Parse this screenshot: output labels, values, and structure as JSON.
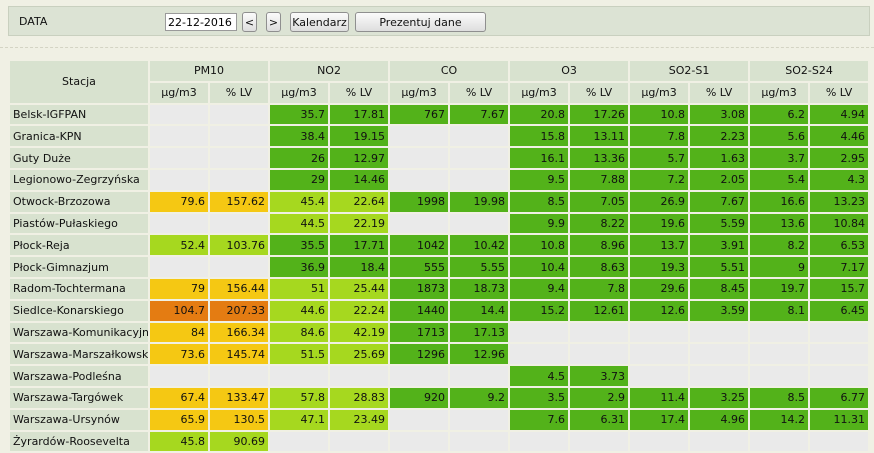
{
  "toolbar": {
    "date_label": "DATA",
    "date_value": "22-12-2016",
    "prev_label": "<",
    "next_label": ">",
    "calendar_label": "Kalendarz",
    "present_label": "Prezentuj dane"
  },
  "table": {
    "station_header": "Stacja",
    "groups": [
      "PM10",
      "NO2",
      "CO",
      "O3",
      "SO2-S1",
      "SO2-S24"
    ],
    "units": [
      "µg/m3",
      "% LV"
    ],
    "colors": {
      "empty": "#eaeaea",
      "very_good": "#53b21a",
      "good": "#a6d81f",
      "moderate": "#f5c813",
      "sufficient": "#e47c12"
    },
    "rows": [
      {
        "name": "Belsk-IGFPAN",
        "values": [
          "",
          "",
          "35.7",
          "17.81",
          "767",
          "7.67",
          "20.8",
          "17.26",
          "10.8",
          "3.08",
          "6.2",
          "4.94"
        ],
        "levels": [
          0,
          0,
          1,
          1,
          1,
          1,
          1,
          1,
          1,
          1,
          1,
          1
        ]
      },
      {
        "name": "Granica-KPN",
        "values": [
          "",
          "",
          "38.4",
          "19.15",
          "",
          "",
          "15.8",
          "13.11",
          "7.8",
          "2.23",
          "5.6",
          "4.46"
        ],
        "levels": [
          0,
          0,
          1,
          1,
          0,
          0,
          1,
          1,
          1,
          1,
          1,
          1
        ]
      },
      {
        "name": "Guty Duże",
        "values": [
          "",
          "",
          "26",
          "12.97",
          "",
          "",
          "16.1",
          "13.36",
          "5.7",
          "1.63",
          "3.7",
          "2.95"
        ],
        "levels": [
          0,
          0,
          1,
          1,
          0,
          0,
          1,
          1,
          1,
          1,
          1,
          1
        ]
      },
      {
        "name": "Legionowo-Zegrzyńska",
        "values": [
          "",
          "",
          "29",
          "14.46",
          "",
          "",
          "9.5",
          "7.88",
          "7.2",
          "2.05",
          "5.4",
          "4.3"
        ],
        "levels": [
          0,
          0,
          1,
          1,
          0,
          0,
          1,
          1,
          1,
          1,
          1,
          1
        ]
      },
      {
        "name": "Otwock-Brzozowa",
        "values": [
          "79.6",
          "157.62",
          "45.4",
          "22.64",
          "1998",
          "19.98",
          "8.5",
          "7.05",
          "26.9",
          "7.67",
          "16.6",
          "13.23"
        ],
        "levels": [
          3,
          3,
          2,
          2,
          1,
          1,
          1,
          1,
          1,
          1,
          1,
          1
        ]
      },
      {
        "name": "Piastów-Pułaskiego",
        "values": [
          "",
          "",
          "44.5",
          "22.19",
          "",
          "",
          "9.9",
          "8.22",
          "19.6",
          "5.59",
          "13.6",
          "10.84"
        ],
        "levels": [
          0,
          0,
          2,
          2,
          0,
          0,
          1,
          1,
          1,
          1,
          1,
          1
        ]
      },
      {
        "name": "Płock-Reja",
        "values": [
          "52.4",
          "103.76",
          "35.5",
          "17.71",
          "1042",
          "10.42",
          "10.8",
          "8.96",
          "13.7",
          "3.91",
          "8.2",
          "6.53"
        ],
        "levels": [
          2,
          2,
          1,
          1,
          1,
          1,
          1,
          1,
          1,
          1,
          1,
          1
        ]
      },
      {
        "name": "Płock-Gimnazjum",
        "values": [
          "",
          "",
          "36.9",
          "18.4",
          "555",
          "5.55",
          "10.4",
          "8.63",
          "19.3",
          "5.51",
          "9",
          "7.17"
        ],
        "levels": [
          0,
          0,
          1,
          1,
          1,
          1,
          1,
          1,
          1,
          1,
          1,
          1
        ]
      },
      {
        "name": "Radom-Tochtermana",
        "values": [
          "79",
          "156.44",
          "51",
          "25.44",
          "1873",
          "18.73",
          "9.4",
          "7.8",
          "29.6",
          "8.45",
          "19.7",
          "15.7"
        ],
        "levels": [
          3,
          3,
          2,
          2,
          1,
          1,
          1,
          1,
          1,
          1,
          1,
          1
        ]
      },
      {
        "name": "Siedlce-Konarskiego",
        "values": [
          "104.7",
          "207.33",
          "44.6",
          "22.24",
          "1440",
          "14.4",
          "15.2",
          "12.61",
          "12.6",
          "3.59",
          "8.1",
          "6.45"
        ],
        "levels": [
          4,
          4,
          2,
          2,
          1,
          1,
          1,
          1,
          1,
          1,
          1,
          1
        ]
      },
      {
        "name": "Warszawa-Komunikacyjna",
        "values": [
          "84",
          "166.34",
          "84.6",
          "42.19",
          "1713",
          "17.13",
          "",
          "",
          "",
          "",
          "",
          ""
        ],
        "levels": [
          3,
          3,
          2,
          2,
          1,
          1,
          0,
          0,
          0,
          0,
          0,
          0
        ]
      },
      {
        "name": "Warszawa-Marszałkowska",
        "values": [
          "73.6",
          "145.74",
          "51.5",
          "25.69",
          "1296",
          "12.96",
          "",
          "",
          "",
          "",
          "",
          ""
        ],
        "levels": [
          3,
          3,
          2,
          2,
          1,
          1,
          0,
          0,
          0,
          0,
          0,
          0
        ]
      },
      {
        "name": "Warszawa-Podleśna",
        "values": [
          "",
          "",
          "",
          "",
          "",
          "",
          "4.5",
          "3.73",
          "",
          "",
          "",
          ""
        ],
        "levels": [
          0,
          0,
          0,
          0,
          0,
          0,
          1,
          1,
          0,
          0,
          0,
          0
        ]
      },
      {
        "name": "Warszawa-Targówek",
        "values": [
          "67.4",
          "133.47",
          "57.8",
          "28.83",
          "920",
          "9.2",
          "3.5",
          "2.9",
          "11.4",
          "3.25",
          "8.5",
          "6.77"
        ],
        "levels": [
          3,
          3,
          2,
          2,
          1,
          1,
          1,
          1,
          1,
          1,
          1,
          1
        ]
      },
      {
        "name": "Warszawa-Ursynów",
        "values": [
          "65.9",
          "130.5",
          "47.1",
          "23.49",
          "",
          "",
          "7.6",
          "6.31",
          "17.4",
          "4.96",
          "14.2",
          "11.31"
        ],
        "levels": [
          3,
          3,
          2,
          2,
          0,
          0,
          1,
          1,
          1,
          1,
          1,
          1
        ]
      },
      {
        "name": "Żyrardów-Roosevelta",
        "values": [
          "45.8",
          "90.69",
          "",
          "",
          "",
          "",
          "",
          "",
          "",
          "",
          "",
          ""
        ],
        "levels": [
          2,
          2,
          0,
          0,
          0,
          0,
          0,
          0,
          0,
          0,
          0,
          0
        ]
      }
    ]
  }
}
